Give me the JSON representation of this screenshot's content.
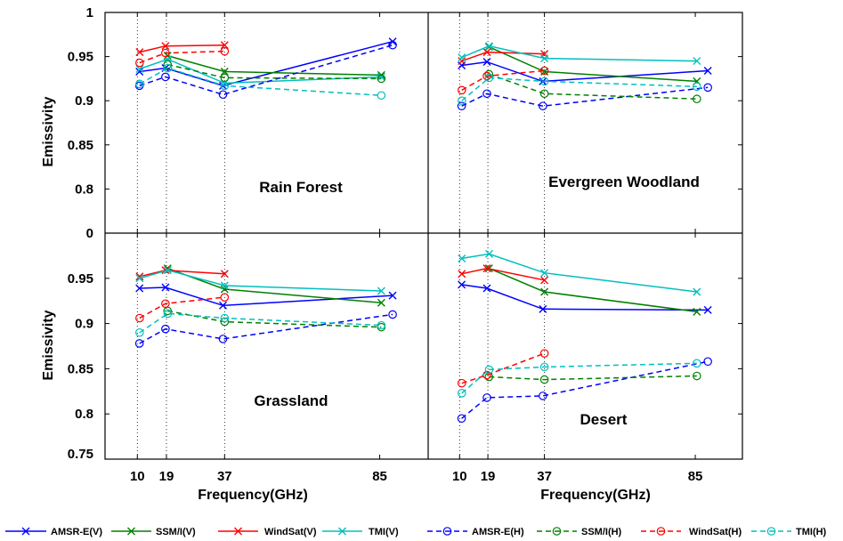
{
  "chart_data": {
    "type": "line",
    "xlabel": "Frequency(GHz)",
    "ylabel": "Emissivity",
    "x_ticks": [
      10,
      19,
      37,
      85
    ],
    "xlim": [
      0,
      100
    ],
    "grid": "dotted vertical lines at 10, 19, 37 GHz",
    "legend_position": "bottom",
    "top_y_ticks": [
      "1",
      "0.95",
      "0.9",
      "0.85",
      "0.8",
      "0"
    ],
    "bottom_y_ticks": [
      "0.95",
      "0.9",
      "0.85",
      "0.8",
      "0.75"
    ],
    "legend": [
      {
        "name": "AMSR-E(V)",
        "color": "#0000ff",
        "dashed": false,
        "marker": "x"
      },
      {
        "name": "SSM/I(V)",
        "color": "#008000",
        "dashed": false,
        "marker": "x"
      },
      {
        "name": "WindSat(V)",
        "color": "#ff0000",
        "dashed": false,
        "marker": "x"
      },
      {
        "name": "TMI(V)",
        "color": "#00bfbf",
        "dashed": false,
        "marker": "x"
      },
      {
        "name": "AMSR-E(H)",
        "color": "#0000ff",
        "dashed": true,
        "marker": "o"
      },
      {
        "name": "SSM/I(H)",
        "color": "#008000",
        "dashed": true,
        "marker": "o"
      },
      {
        "name": "WindSat(H)",
        "color": "#ff0000",
        "dashed": true,
        "marker": "o"
      },
      {
        "name": "TMI(H)",
        "color": "#00bfbf",
        "dashed": true,
        "marker": "o"
      }
    ],
    "panels": [
      {
        "title": "Rain Forest",
        "ylim": [
          0.75,
          1.0
        ],
        "series": [
          {
            "legend": 0,
            "x": [
              10.65,
              18.7,
              36.5,
              89
            ],
            "y": [
              0.933,
              0.937,
              0.917,
              0.967
            ]
          },
          {
            "legend": 1,
            "x": [
              19.35,
              37,
              85.5
            ],
            "y": [
              0.951,
              0.933,
              0.929
            ]
          },
          {
            "legend": 2,
            "x": [
              10.7,
              18.7,
              37
            ],
            "y": [
              0.955,
              0.962,
              0.963
            ]
          },
          {
            "legend": 3,
            "x": [
              10.7,
              19.4,
              37,
              85.5
            ],
            "y": [
              0.936,
              0.947,
              0.92,
              0.927
            ]
          },
          {
            "legend": 4,
            "x": [
              10.65,
              18.7,
              36.5,
              89
            ],
            "y": [
              0.917,
              0.927,
              0.907,
              0.963
            ]
          },
          {
            "legend": 5,
            "x": [
              19.35,
              37,
              85.5
            ],
            "y": [
              0.941,
              0.926,
              0.925
            ]
          },
          {
            "legend": 6,
            "x": [
              10.7,
              18.7,
              37
            ],
            "y": [
              0.943,
              0.954,
              0.956
            ]
          },
          {
            "legend": 7,
            "x": [
              10.7,
              19.4,
              37,
              85.5
            ],
            "y": [
              0.919,
              0.937,
              0.917,
              0.906
            ]
          }
        ]
      },
      {
        "title": "Evergreen Woodland",
        "ylim": [
          0.75,
          1.0
        ],
        "series": [
          {
            "legend": 0,
            "x": [
              10.65,
              18.7,
              36.5,
              89
            ],
            "y": [
              0.94,
              0.944,
              0.922,
              0.934
            ]
          },
          {
            "legend": 1,
            "x": [
              19.35,
              37,
              85.5
            ],
            "y": [
              0.961,
              0.933,
              0.922
            ]
          },
          {
            "legend": 2,
            "x": [
              10.7,
              18.7,
              37
            ],
            "y": [
              0.945,
              0.955,
              0.953
            ]
          },
          {
            "legend": 3,
            "x": [
              10.7,
              19.4,
              37,
              85.5
            ],
            "y": [
              0.949,
              0.962,
              0.948,
              0.945
            ]
          },
          {
            "legend": 4,
            "x": [
              10.65,
              18.7,
              36.5,
              89
            ],
            "y": [
              0.894,
              0.908,
              0.894,
              0.915
            ]
          },
          {
            "legend": 5,
            "x": [
              19.35,
              37,
              85.5
            ],
            "y": [
              0.93,
              0.908,
              0.902
            ]
          },
          {
            "legend": 6,
            "x": [
              10.7,
              18.7,
              37
            ],
            "y": [
              0.912,
              0.928,
              0.934
            ]
          },
          {
            "legend": 7,
            "x": [
              10.7,
              19.4,
              37,
              85.5
            ],
            "y": [
              0.9,
              0.926,
              0.922,
              0.916
            ]
          }
        ]
      },
      {
        "title": "Grassland",
        "ylim": [
          0.75,
          1.0
        ],
        "series": [
          {
            "legend": 0,
            "x": [
              10.65,
              18.7,
              36.5,
              89
            ],
            "y": [
              0.939,
              0.94,
              0.92,
              0.931
            ]
          },
          {
            "legend": 1,
            "x": [
              19.35,
              37,
              85.5
            ],
            "y": [
              0.961,
              0.938,
              0.923
            ]
          },
          {
            "legend": 2,
            "x": [
              10.7,
              18.7,
              37
            ],
            "y": [
              0.952,
              0.959,
              0.955
            ]
          },
          {
            "legend": 3,
            "x": [
              10.7,
              19.4,
              37,
              85.5
            ],
            "y": [
              0.95,
              0.959,
              0.942,
              0.936
            ]
          },
          {
            "legend": 4,
            "x": [
              10.65,
              18.7,
              36.5,
              89
            ],
            "y": [
              0.878,
              0.894,
              0.883,
              0.91
            ]
          },
          {
            "legend": 5,
            "x": [
              19.35,
              37,
              85.5
            ],
            "y": [
              0.914,
              0.902,
              0.896
            ]
          },
          {
            "legend": 6,
            "x": [
              10.7,
              18.7,
              37
            ],
            "y": [
              0.906,
              0.922,
              0.929
            ]
          },
          {
            "legend": 7,
            "x": [
              10.7,
              19.4,
              37,
              85.5
            ],
            "y": [
              0.89,
              0.911,
              0.906,
              0.898
            ]
          }
        ]
      },
      {
        "title": "Desert",
        "ylim": [
          0.75,
          1.0
        ],
        "series": [
          {
            "legend": 0,
            "x": [
              10.65,
              18.7,
              36.5,
              89
            ],
            "y": [
              0.943,
              0.939,
              0.916,
              0.915
            ]
          },
          {
            "legend": 1,
            "x": [
              19.35,
              37,
              85.5
            ],
            "y": [
              0.961,
              0.935,
              0.913
            ]
          },
          {
            "legend": 2,
            "x": [
              10.7,
              18.7,
              37
            ],
            "y": [
              0.955,
              0.961,
              0.948
            ]
          },
          {
            "legend": 3,
            "x": [
              10.7,
              19.4,
              37,
              85.5
            ],
            "y": [
              0.972,
              0.977,
              0.956,
              0.935
            ]
          },
          {
            "legend": 4,
            "x": [
              10.65,
              18.7,
              36.5,
              89
            ],
            "y": [
              0.795,
              0.818,
              0.82,
              0.858
            ]
          },
          {
            "legend": 5,
            "x": [
              19.35,
              37,
              85.5
            ],
            "y": [
              0.841,
              0.838,
              0.842
            ]
          },
          {
            "legend": 6,
            "x": [
              10.7,
              18.7,
              37
            ],
            "y": [
              0.834,
              0.843,
              0.867
            ]
          },
          {
            "legend": 7,
            "x": [
              10.7,
              19.4,
              37,
              85.5
            ],
            "y": [
              0.823,
              0.849,
              0.852,
              0.856
            ]
          }
        ]
      }
    ]
  }
}
